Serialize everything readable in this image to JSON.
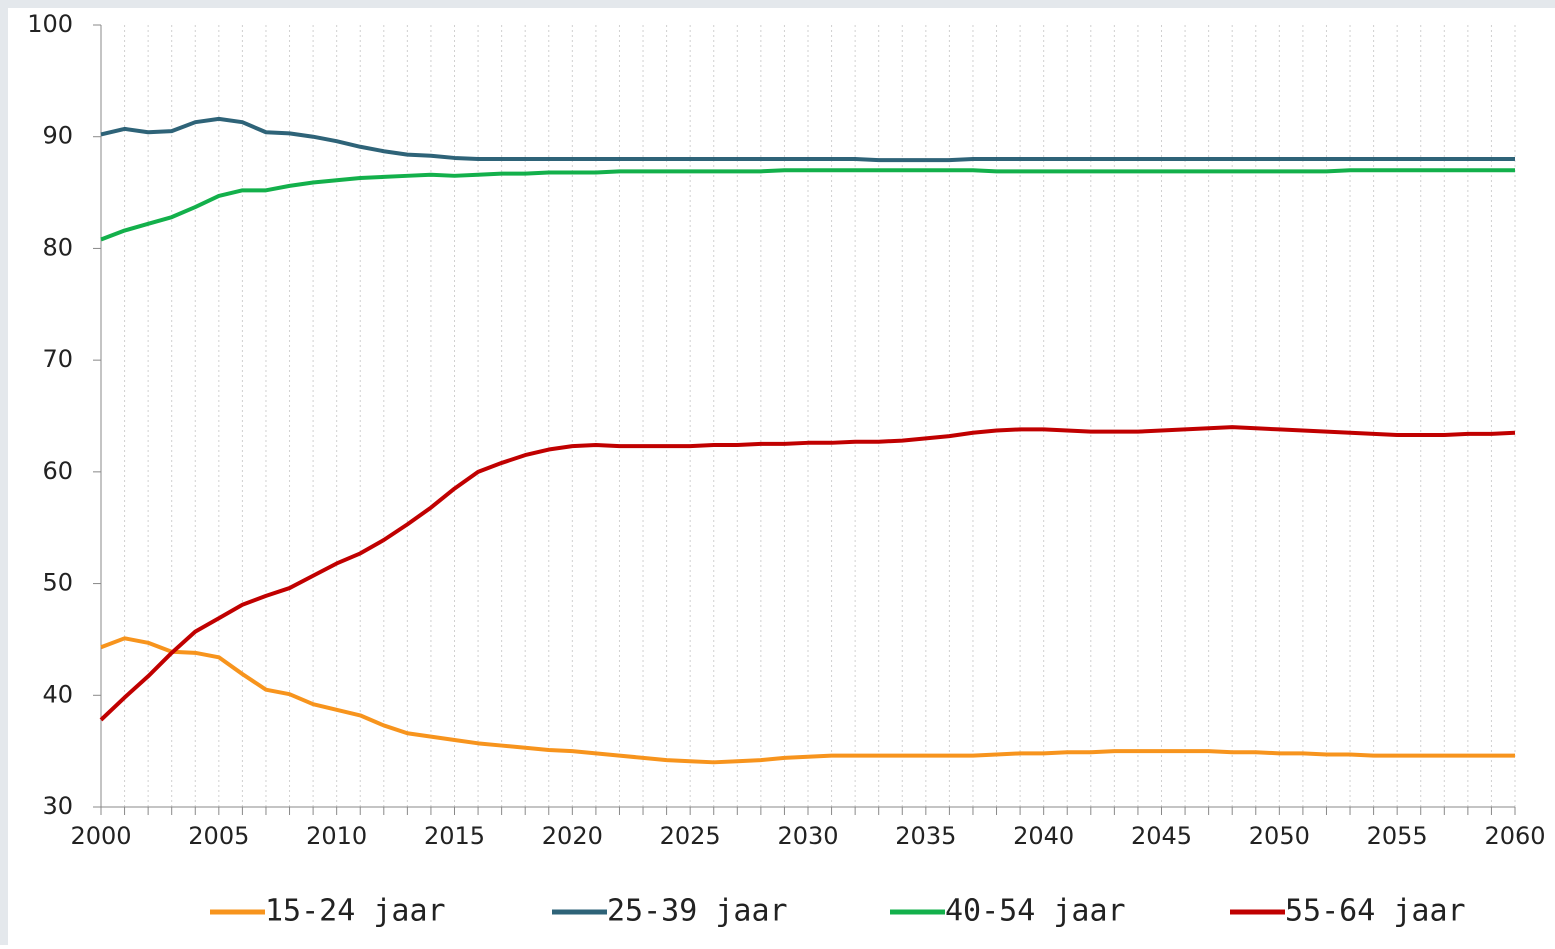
{
  "chart_data": {
    "type": "line",
    "x": [
      2000,
      2001,
      2002,
      2003,
      2004,
      2005,
      2006,
      2007,
      2008,
      2009,
      2010,
      2011,
      2012,
      2013,
      2014,
      2015,
      2016,
      2017,
      2018,
      2019,
      2020,
      2021,
      2022,
      2023,
      2024,
      2025,
      2026,
      2027,
      2028,
      2029,
      2030,
      2031,
      2032,
      2033,
      2034,
      2035,
      2036,
      2037,
      2038,
      2039,
      2040,
      2041,
      2042,
      2043,
      2044,
      2045,
      2046,
      2047,
      2048,
      2049,
      2050,
      2051,
      2052,
      2053,
      2054,
      2055,
      2056,
      2057,
      2058,
      2059,
      2060
    ],
    "series": [
      {
        "name": "15-24 jaar",
        "color": "#f7941d",
        "values": [
          44.3,
          45.1,
          44.7,
          43.9,
          43.8,
          43.4,
          41.9,
          40.5,
          40.1,
          39.2,
          38.7,
          38.2,
          37.3,
          36.6,
          36.3,
          36.0,
          35.7,
          35.5,
          35.3,
          35.1,
          35.0,
          34.8,
          34.6,
          34.4,
          34.2,
          34.1,
          34.0,
          34.1,
          34.2,
          34.4,
          34.5,
          34.6,
          34.6,
          34.6,
          34.6,
          34.6,
          34.6,
          34.6,
          34.7,
          34.8,
          34.8,
          34.9,
          34.9,
          35.0,
          35.0,
          35.0,
          35.0,
          35.0,
          34.9,
          34.9,
          34.8,
          34.8,
          34.7,
          34.7,
          34.6,
          34.6,
          34.6,
          34.6,
          34.6,
          34.6,
          34.6
        ]
      },
      {
        "name": "25-39 jaar",
        "color": "#2e6378",
        "values": [
          90.2,
          90.7,
          90.4,
          90.5,
          91.3,
          91.6,
          91.3,
          90.4,
          90.3,
          90.0,
          89.6,
          89.1,
          88.7,
          88.4,
          88.3,
          88.1,
          88,
          88,
          88,
          88,
          88,
          88,
          88,
          88,
          88,
          88,
          88,
          88,
          88,
          88,
          88,
          88,
          88,
          87.9,
          87.9,
          87.9,
          87.9,
          88,
          88,
          88,
          88,
          88,
          88,
          88,
          88,
          88,
          88,
          88,
          88,
          88,
          88,
          88,
          88,
          88,
          88,
          88,
          88,
          88,
          88,
          88,
          88
        ]
      },
      {
        "name": "40-54 jaar",
        "color": "#13b04b",
        "values": [
          80.8,
          81.6,
          82.2,
          82.8,
          83.7,
          84.7,
          85.2,
          85.2,
          85.6,
          85.9,
          86.1,
          86.3,
          86.4,
          86.5,
          86.6,
          86.5,
          86.6,
          86.7,
          86.7,
          86.8,
          86.8,
          86.8,
          86.9,
          86.9,
          86.9,
          86.9,
          86.9,
          86.9,
          86.9,
          87,
          87,
          87,
          87,
          87,
          87,
          87,
          87,
          87,
          86.9,
          86.9,
          86.9,
          86.9,
          86.9,
          86.9,
          86.9,
          86.9,
          86.9,
          86.9,
          86.9,
          86.9,
          86.9,
          86.9,
          86.9,
          87,
          87,
          87,
          87,
          87,
          87,
          87,
          87
        ]
      },
      {
        "name": "55-64 jaar",
        "color": "#c00000",
        "values": [
          37.8,
          39.8,
          41.7,
          43.8,
          45.7,
          46.9,
          48.1,
          48.9,
          49.6,
          50.7,
          51.8,
          52.7,
          53.9,
          55.3,
          56.8,
          58.5,
          60.0,
          60.8,
          61.5,
          62.0,
          62.3,
          62.4,
          62.3,
          62.3,
          62.3,
          62.3,
          62.4,
          62.4,
          62.5,
          62.5,
          62.6,
          62.6,
          62.7,
          62.7,
          62.8,
          63.0,
          63.2,
          63.5,
          63.7,
          63.8,
          63.8,
          63.7,
          63.6,
          63.6,
          63.6,
          63.7,
          63.8,
          63.9,
          64.0,
          63.9,
          63.8,
          63.7,
          63.6,
          63.5,
          63.4,
          63.3,
          63.3,
          63.3,
          63.4,
          63.4,
          63.5
        ]
      }
    ],
    "xlim": [
      2000,
      2060
    ],
    "xticks": [
      2000,
      2005,
      2010,
      2015,
      2020,
      2025,
      2030,
      2035,
      2040,
      2045,
      2050,
      2055,
      2060
    ],
    "ylim": [
      30,
      100
    ],
    "yticks": [
      30,
      40,
      50,
      60,
      70,
      80,
      90,
      100
    ],
    "grid": true,
    "legend": "bottom"
  }
}
